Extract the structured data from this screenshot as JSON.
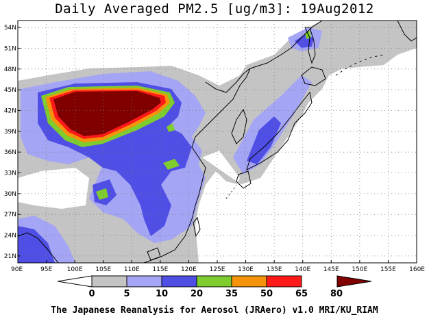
{
  "title": "Daily Averaged PM2.5 [ug/m3]: 19Aug2012",
  "footer": "The Japanese Reanalysis for Aerosol (JRAero) v1.0 MRI/KU_RIAM",
  "map": {
    "lat_labels": [
      "54N",
      "51N",
      "48N",
      "45N",
      "42N",
      "39N",
      "36N",
      "33N",
      "30N",
      "27N",
      "24N",
      "21N"
    ],
    "lon_labels": [
      "90E",
      "95E",
      "100E",
      "105E",
      "110E",
      "115E",
      "120E",
      "125E",
      "130E",
      "135E",
      "140E",
      "145E",
      "150E",
      "155E",
      "160E"
    ],
    "lon_range": [
      90,
      160
    ],
    "lat_range": [
      20,
      55
    ],
    "grid": "dotted"
  },
  "colorbar": {
    "labels": [
      "0",
      "5",
      "10",
      "20",
      "35",
      "50",
      "65",
      "80"
    ],
    "colors": [
      "#ffffff",
      "#c4c4c4",
      "#a5a5f5",
      "#4f4fe6",
      "#7fcc2e",
      "#f5940a",
      "#ff1a1a",
      "#800000"
    ]
  }
}
